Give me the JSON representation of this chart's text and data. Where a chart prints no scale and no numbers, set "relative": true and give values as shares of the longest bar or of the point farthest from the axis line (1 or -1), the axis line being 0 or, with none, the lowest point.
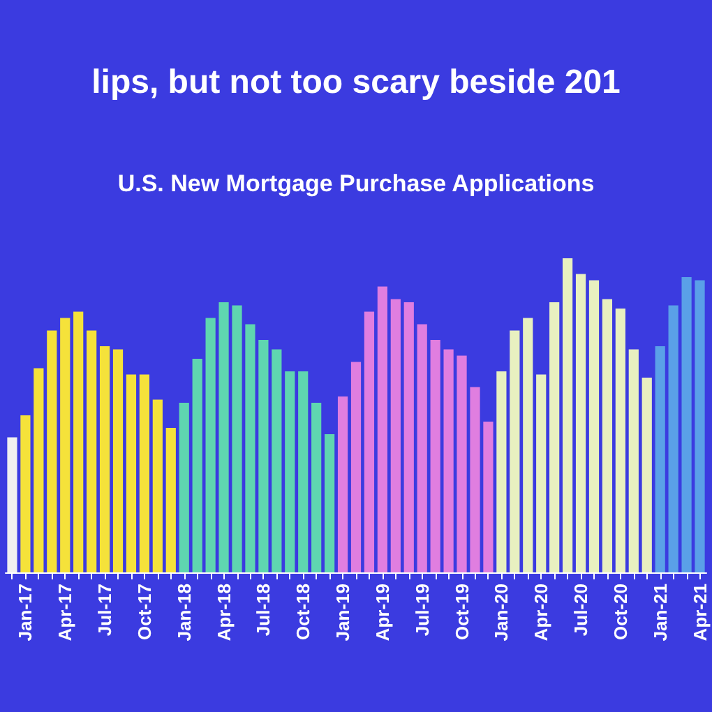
{
  "chart_data": {
    "type": "bar",
    "relative": true,
    "title": "lips, but not too scary beside 201",
    "subtitle": "U.S. New Mortgage Purchase Applications",
    "categories": [
      null,
      "Jan-17",
      null,
      null,
      "Apr-17",
      null,
      null,
      "Jul-17",
      null,
      null,
      "Oct-17",
      null,
      null,
      "Jan-18",
      null,
      null,
      "Apr-18",
      null,
      null,
      "Jul-18",
      null,
      null,
      "Oct-18",
      null,
      null,
      "Jan-19",
      null,
      null,
      "Apr-19",
      null,
      null,
      "Jul-19",
      null,
      null,
      "Oct-19",
      null,
      null,
      "Jan-20",
      null,
      null,
      "Apr-20",
      null,
      null,
      "Jul-20",
      null,
      null,
      "Oct-20",
      null,
      null,
      "Jan-21",
      null,
      null,
      "Apr-21"
    ],
    "values": [
      0.43,
      0.5,
      0.65,
      0.77,
      0.81,
      0.83,
      0.77,
      0.72,
      0.71,
      0.63,
      0.63,
      0.55,
      0.46,
      0.54,
      0.68,
      0.81,
      0.86,
      0.85,
      0.79,
      0.74,
      0.71,
      0.64,
      0.64,
      0.54,
      0.44,
      0.56,
      0.67,
      0.83,
      0.91,
      0.87,
      0.86,
      0.79,
      0.74,
      0.71,
      0.69,
      0.59,
      0.48,
      0.64,
      0.77,
      0.81,
      0.63,
      0.86,
      1,
      0.95,
      0.93,
      0.87,
      0.84,
      0.71,
      0.62,
      0.72,
      0.85,
      0.94,
      0.93
    ],
    "colors": [
      "#f0f0f0",
      "#f5e23a",
      "#f5e23a",
      "#f5e23a",
      "#f5e23a",
      "#f5e23a",
      "#f5e23a",
      "#f5e23a",
      "#f5e23a",
      "#f5e23a",
      "#f5e23a",
      "#f5e23a",
      "#f5e23a",
      "#5fd6b0",
      "#5fd6b0",
      "#5fd6b0",
      "#5fd6b0",
      "#5fd6b0",
      "#5fd6b0",
      "#5fd6b0",
      "#5fd6b0",
      "#5fd6b0",
      "#5fd6b0",
      "#5fd6b0",
      "#5fd6b0",
      "#e07ee0",
      "#e07ee0",
      "#e07ee0",
      "#e07ee0",
      "#e07ee0",
      "#e07ee0",
      "#e07ee0",
      "#e07ee0",
      "#e07ee0",
      "#e07ee0",
      "#e07ee0",
      "#e07ee0",
      "#e8f0c0",
      "#e8f0c0",
      "#e8f0c0",
      "#e8f0c0",
      "#e8f0c0",
      "#e8f0c0",
      "#e8f0c0",
      "#e8f0c0",
      "#e8f0c0",
      "#e8f0c0",
      "#e8f0c0",
      "#e8f0c0",
      "#5aa0e8",
      "#5aa0e8",
      "#5aa0e8",
      "#5aa0e8"
    ]
  }
}
